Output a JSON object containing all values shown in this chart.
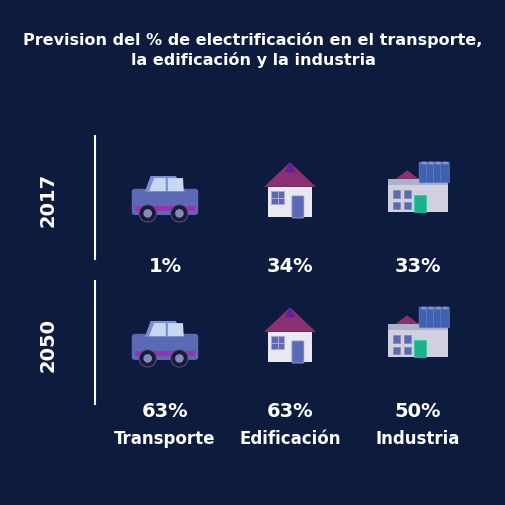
{
  "background_color": "#0d1b3e",
  "title_line1": "Prevision del % de electrificación en el transporte,",
  "title_line2": "la edificación y la industria",
  "title_color": "#ffffff",
  "title_fontsize": 11.5,
  "title_fontweight": "bold",
  "years": [
    "2017",
    "2050"
  ],
  "year_color": "#ffffff",
  "year_fontsize": 14,
  "year_fontweight": "bold",
  "categories": [
    "Transporte",
    "Edificación",
    "Industria"
  ],
  "category_color": "#ffffff",
  "category_fontsize": 12,
  "category_fontweight": "bold",
  "values_2017": [
    "1%",
    "34%",
    "33%"
  ],
  "values_2050": [
    "63%",
    "63%",
    "50%"
  ],
  "value_color": "#ffffff",
  "value_fontsize": 14,
  "value_fontweight": "bold",
  "line_color": "#ffffff",
  "car_body": "#5b6ab5",
  "car_top": "#7b8fd4",
  "car_window": "#c8d8f0",
  "car_wheel": "#222244",
  "car_stripe": "#9b30b0",
  "house_wall": "#e8e8f0",
  "house_roof": "#8b3070",
  "house_window": "#5b6ab5",
  "house_door": "#5b6ab5",
  "factory_wall": "#d0d0e0",
  "factory_roof": "#8b3070",
  "factory_silo": "#5b80cc",
  "factory_window": "#5b6ab5",
  "factory_door": "#20b090"
}
